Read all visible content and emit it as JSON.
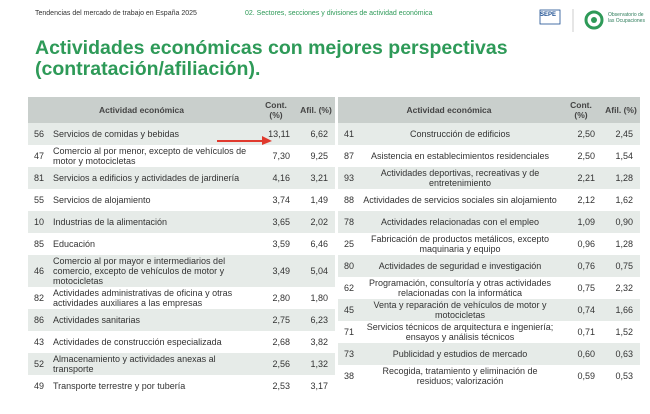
{
  "header": {
    "report": "Tendencias del mercado de trabajo en España 2025",
    "section": "02. Sectores, secciones y divisiones de actividad económica",
    "logo_sepe": "SEPE",
    "logo_observatorio": "Observatorio de las Ocupaciones"
  },
  "title": [
    "Actividades económicas con mejores perspectivas",
    "(contratación/afiliación)."
  ],
  "tables": [
    {
      "columns": [
        "Actividad económica",
        "Cont. (%)",
        "Afil. (%)"
      ],
      "rows": [
        {
          "code": "56",
          "activity": "Servicios de comidas y bebidas",
          "cont": "13,11",
          "afil": "6,62"
        },
        {
          "code": "47",
          "activity": "Comercio al por menor, excepto de vehículos de motor y motocicletas",
          "cont": "7,30",
          "afil": "9,25"
        },
        {
          "code": "81",
          "activity": "Servicios a edificios y actividades de jardinería",
          "cont": "4,16",
          "afil": "3,21"
        },
        {
          "code": "55",
          "activity": "Servicios de alojamiento",
          "cont": "3,74",
          "afil": "1,49"
        },
        {
          "code": "10",
          "activity": "Industrias de la alimentación",
          "cont": "3,65",
          "afil": "2,02"
        },
        {
          "code": "85",
          "activity": "Educación",
          "cont": "3,59",
          "afil": "6,46"
        },
        {
          "code": "46",
          "activity": "Comercio al por mayor e intermediarios del comercio, excepto de vehículos de motor y motocicletas",
          "cont": "3,49",
          "afil": "5,04"
        },
        {
          "code": "82",
          "activity": "Actividades administrativas de oficina y otras actividades auxiliares a las empresas",
          "cont": "2,80",
          "afil": "1,80"
        },
        {
          "code": "86",
          "activity": "Actividades sanitarias",
          "cont": "2,75",
          "afil": "6,23"
        },
        {
          "code": "43",
          "activity": "Actividades de construcción especializada",
          "cont": "2,68",
          "afil": "3,82"
        },
        {
          "code": "52",
          "activity": "Almacenamiento y actividades anexas al transporte",
          "cont": "2,56",
          "afil": "1,32"
        },
        {
          "code": "49",
          "activity": "Transporte terrestre y por tubería",
          "cont": "2,53",
          "afil": "3,17"
        }
      ]
    },
    {
      "columns": [
        "Actividad económica",
        "Cont. (%)",
        "Afil. (%)"
      ],
      "rows": [
        {
          "code": "41",
          "activity": "Construcción de edificios",
          "cont": "2,50",
          "afil": "2,45"
        },
        {
          "code": "87",
          "activity": "Asistencia en establecimientos residenciales",
          "cont": "2,50",
          "afil": "1,54"
        },
        {
          "code": "93",
          "activity": "Actividades deportivas, recreativas y de entretenimiento",
          "cont": "2,21",
          "afil": "1,28"
        },
        {
          "code": "88",
          "activity": "Actividades de servicios sociales sin alojamiento",
          "cont": "2,12",
          "afil": "1,62"
        },
        {
          "code": "78",
          "activity": "Actividades relacionadas con el empleo",
          "cont": "1,09",
          "afil": "0,90"
        },
        {
          "code": "25",
          "activity": "Fabricación de productos metálicos, excepto maquinaria y equipo",
          "cont": "0,96",
          "afil": "1,28"
        },
        {
          "code": "80",
          "activity": "Actividades de seguridad e investigación",
          "cont": "0,76",
          "afil": "0,75"
        },
        {
          "code": "62",
          "activity": "Programación, consultoría y otras actividades relacionadas con la informática",
          "cont": "0,75",
          "afil": "2,32"
        },
        {
          "code": "45",
          "activity": "Venta y reparación de vehículos de motor y motocicletas",
          "cont": "0,74",
          "afil": "1,66"
        },
        {
          "code": "71",
          "activity": "Servicios técnicos de arquitectura e ingeniería; ensayos y análisis técnicos",
          "cont": "0,71",
          "afil": "1,52"
        },
        {
          "code": "73",
          "activity": "Publicidad y estudios de mercado",
          "cont": "0,60",
          "afil": "0,63"
        },
        {
          "code": "38",
          "activity": "Recogida, tratamiento y eliminación de residuos; valorización",
          "cont": "0,59",
          "afil": "0,53"
        }
      ]
    }
  ]
}
